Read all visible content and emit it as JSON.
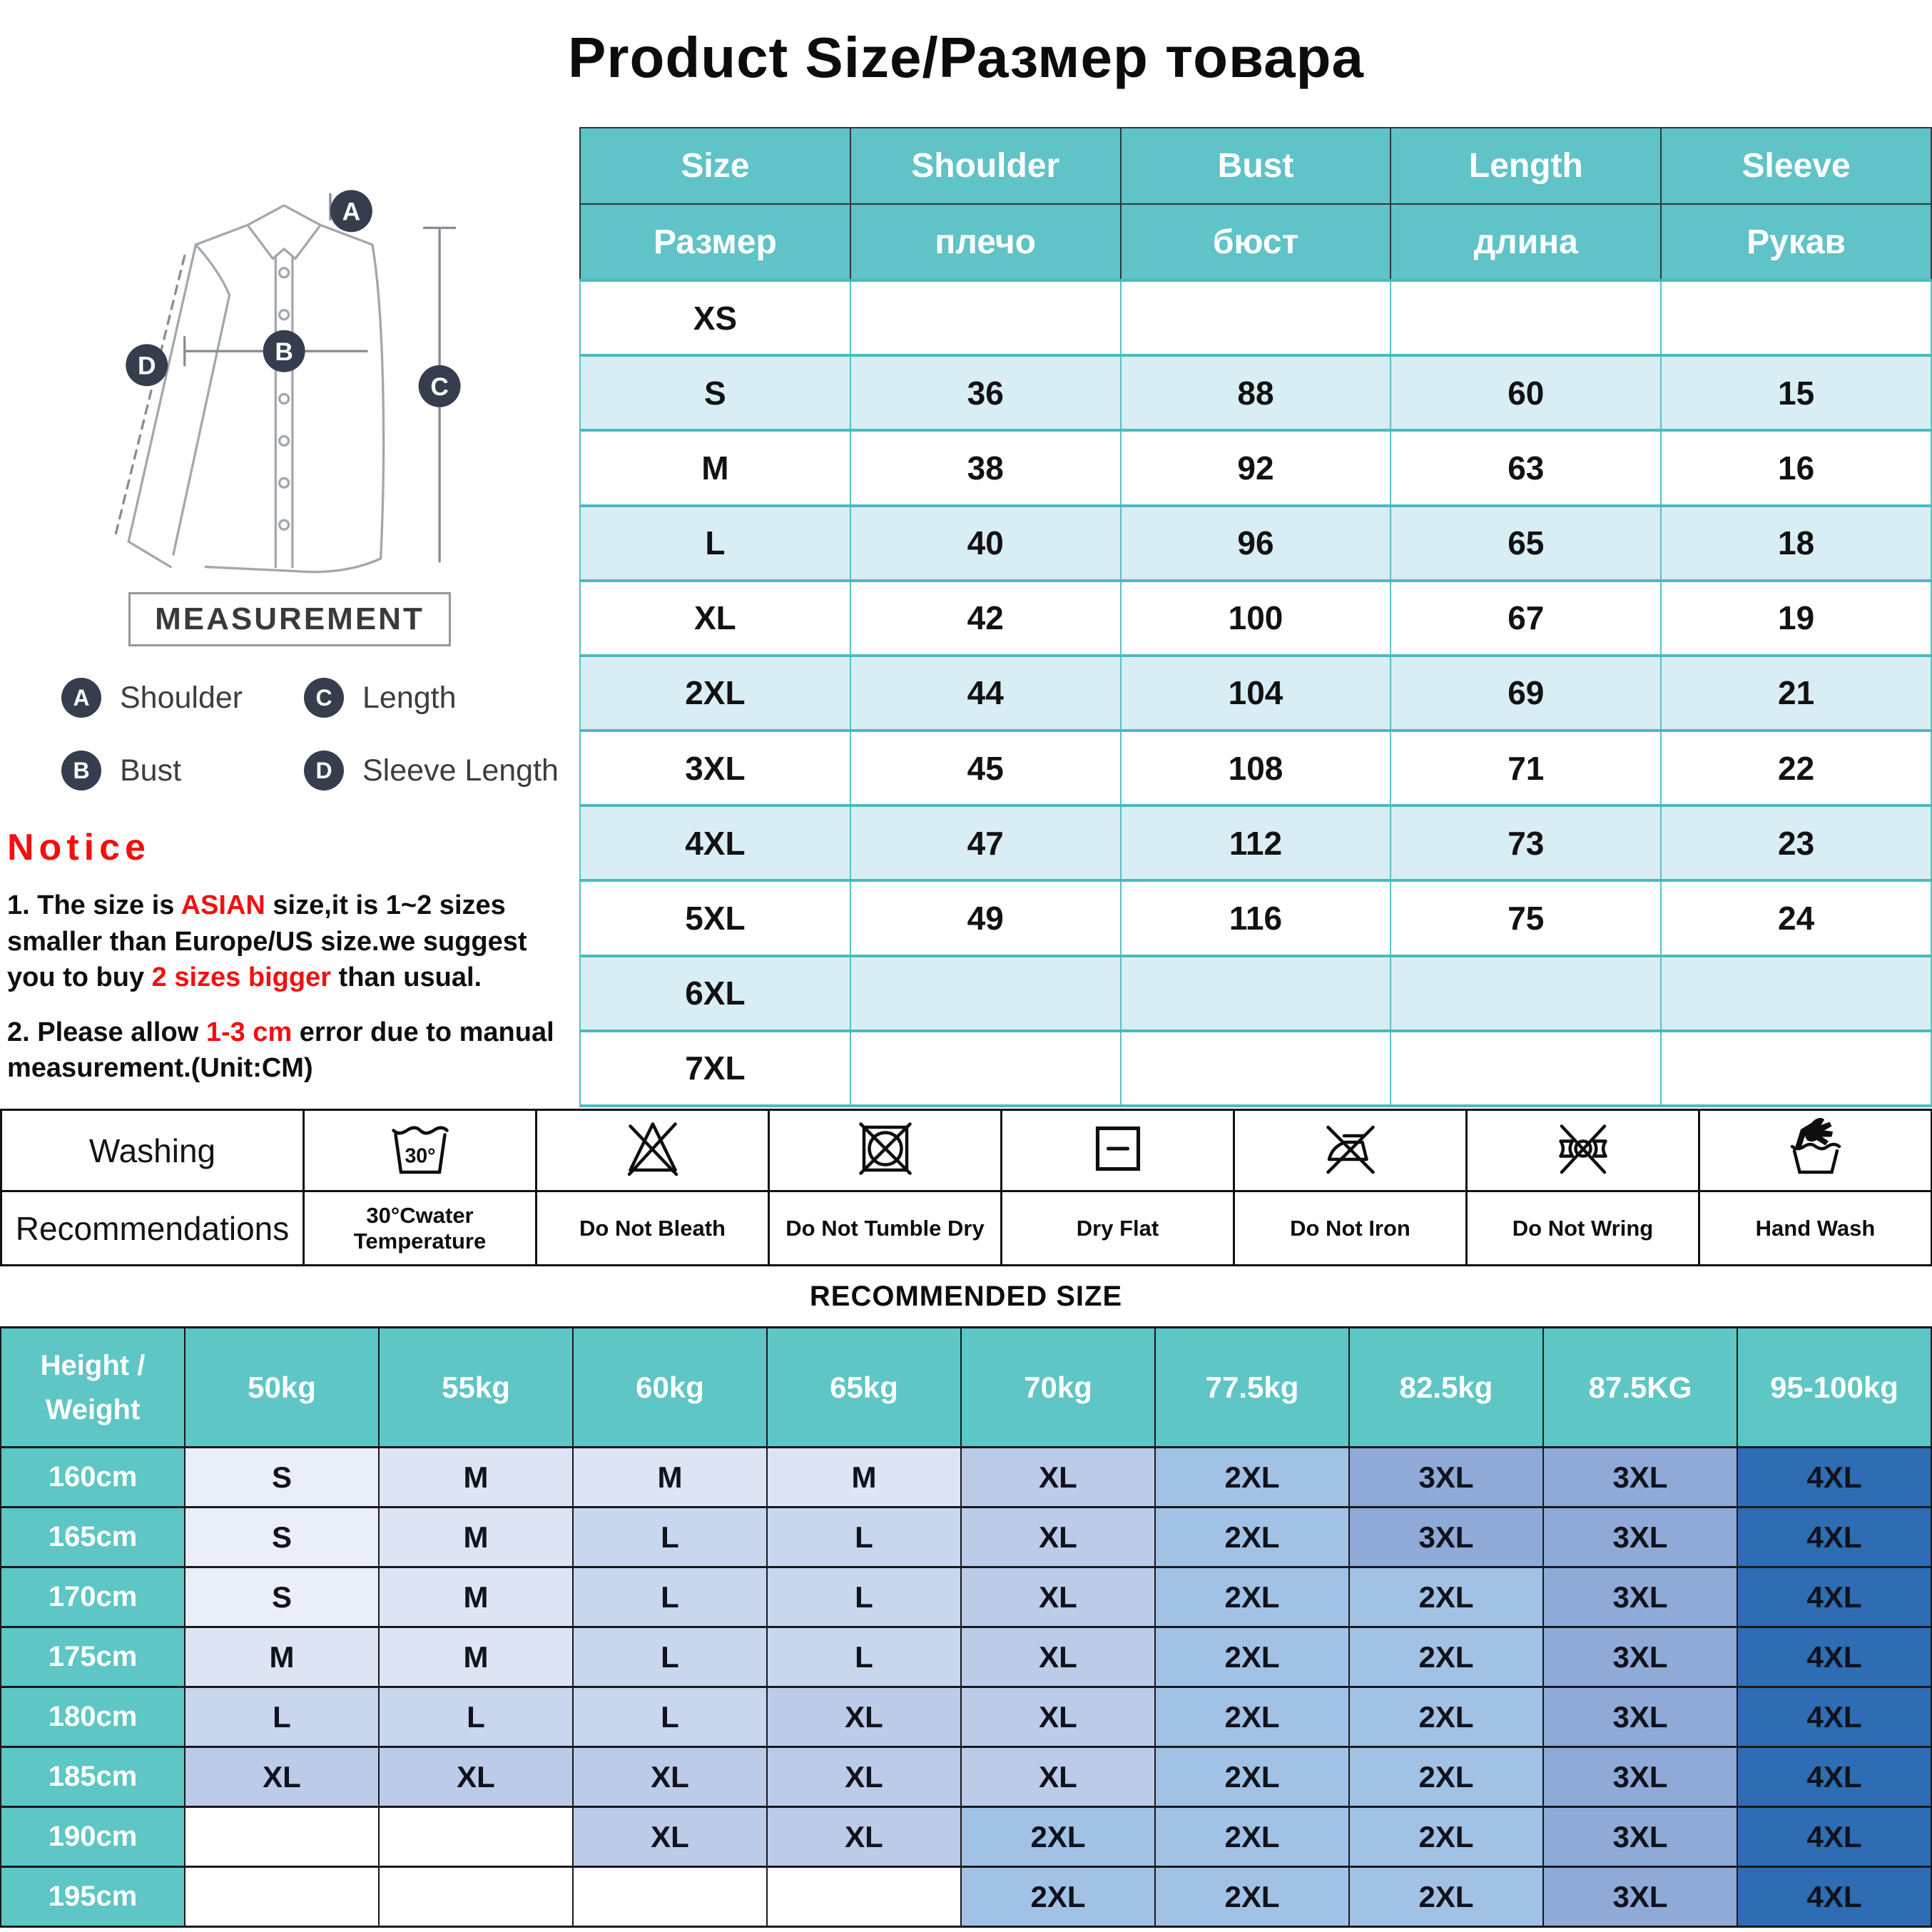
{
  "title": "Product Size/Размер  товара",
  "measurement": {
    "box_label": "MEASUREMENT",
    "badges": {
      "a": "A",
      "b": "B",
      "c": "C",
      "d": "D"
    },
    "legend": [
      {
        "letter": "A",
        "label": "Shoulder"
      },
      {
        "letter": "C",
        "label": "Length"
      },
      {
        "letter": "B",
        "label": "Bust"
      },
      {
        "letter": "D",
        "label": "Sleeve Length"
      }
    ]
  },
  "notice": {
    "heading": "Notice",
    "p1": [
      {
        "t": "1. The size is "
      },
      {
        "t": "ASIAN",
        "red": true
      },
      {
        "t": " size,it is 1~2 sizes smaller than Europe/US size.we suggest you to buy "
      },
      {
        "t": "2 sizes bigger",
        "red": true
      },
      {
        "t": " than usual."
      }
    ],
    "p2": [
      {
        "t": "2. Please allow "
      },
      {
        "t": "1-3 cm",
        "red": true
      },
      {
        "t": " error due to manual measurement.(Unit:CM)"
      }
    ]
  },
  "size_table": {
    "headers_en": [
      "Size",
      "Shoulder",
      "Bust",
      "Length",
      "Sleeve"
    ],
    "headers_ru": [
      "Размер",
      "плечо",
      "бюст",
      "длина",
      "Рукав"
    ],
    "rows": [
      [
        "XS",
        "",
        "",
        "",
        ""
      ],
      [
        "S",
        "36",
        "88",
        "60",
        "15"
      ],
      [
        "M",
        "38",
        "92",
        "63",
        "16"
      ],
      [
        "L",
        "40",
        "96",
        "65",
        "18"
      ],
      [
        "XL",
        "42",
        "100",
        "67",
        "19"
      ],
      [
        "2XL",
        "44",
        "104",
        "69",
        "21"
      ],
      [
        "3XL",
        "45",
        "108",
        "71",
        "22"
      ],
      [
        "4XL",
        "47",
        "112",
        "73",
        "23"
      ],
      [
        "5XL",
        "49",
        "116",
        "75",
        "24"
      ],
      [
        "6XL",
        "",
        "",
        "",
        ""
      ],
      [
        "7XL",
        "",
        "",
        "",
        ""
      ]
    ]
  },
  "washing": {
    "row1_label": "Washing",
    "row2_label": "Recommendations",
    "tub_label": "30°",
    "items": [
      {
        "icon": "wash-30-icon",
        "label": "30°Cwater Temperature"
      },
      {
        "icon": "do-not-bleach-icon",
        "label": "Do Not Bleath"
      },
      {
        "icon": "do-not-tumble-dry-icon",
        "label": "Do Not Tumble Dry"
      },
      {
        "icon": "dry-flat-icon",
        "label": "Dry Flat"
      },
      {
        "icon": "do-not-iron-icon",
        "label": "Do Not Iron"
      },
      {
        "icon": "do-not-wring-icon",
        "label": "Do Not Wring"
      },
      {
        "icon": "hand-wash-icon",
        "label": "Hand Wash"
      }
    ]
  },
  "recommended": {
    "heading": "RECOMMENDED SIZE",
    "corner_line1": "Height /",
    "corner_line2": "Weight",
    "weight_headers": [
      "50kg",
      "55kg",
      "60kg",
      "65kg",
      "70kg",
      "77.5kg",
      "82.5kg",
      "87.5KG",
      "95-100kg"
    ],
    "rows": [
      {
        "height": "160cm",
        "sizes": [
          "S",
          "M",
          "M",
          "M",
          "XL",
          "2XL",
          "3XL",
          "3XL",
          "4XL"
        ]
      },
      {
        "height": "165cm",
        "sizes": [
          "S",
          "M",
          "L",
          "L",
          "XL",
          "2XL",
          "3XL",
          "3XL",
          "4XL"
        ]
      },
      {
        "height": "170cm",
        "sizes": [
          "S",
          "M",
          "L",
          "L",
          "XL",
          "2XL",
          "2XL",
          "3XL",
          "4XL"
        ]
      },
      {
        "height": "175cm",
        "sizes": [
          "M",
          "M",
          "L",
          "L",
          "XL",
          "2XL",
          "2XL",
          "3XL",
          "4XL"
        ]
      },
      {
        "height": "180cm",
        "sizes": [
          "L",
          "L",
          "L",
          "XL",
          "XL",
          "2XL",
          "2XL",
          "3XL",
          "4XL"
        ]
      },
      {
        "height": "185cm",
        "sizes": [
          "XL",
          "XL",
          "XL",
          "XL",
          "XL",
          "2XL",
          "2XL",
          "3XL",
          "4XL"
        ]
      },
      {
        "height": "190cm",
        "sizes": [
          "",
          "",
          "XL",
          "XL",
          "2XL",
          "2XL",
          "2XL",
          "3XL",
          "4XL"
        ]
      },
      {
        "height": "195cm",
        "sizes": [
          "",
          "",
          "",
          "",
          "2XL",
          "2XL",
          "2XL",
          "3XL",
          "4XL"
        ]
      }
    ],
    "cell_colors": {
      "": "#ffffff",
      "S": "#e9eef8",
      "M": "#dde4f3",
      "L": "#c8d7ee",
      "XL": "#bccbe8",
      "2XL": "#a2c2e5",
      "3XL": "#8faad7",
      "4XL": "#2e6cb4"
    }
  },
  "colors": {
    "teal_header": "#5fc3c7",
    "teal_border": "#4cbabf",
    "light_row": "#d9edf5",
    "notice_red": "#f40f0f",
    "badge_navy": "#363d4c",
    "size_dark_blue": "#2e6cb4"
  }
}
